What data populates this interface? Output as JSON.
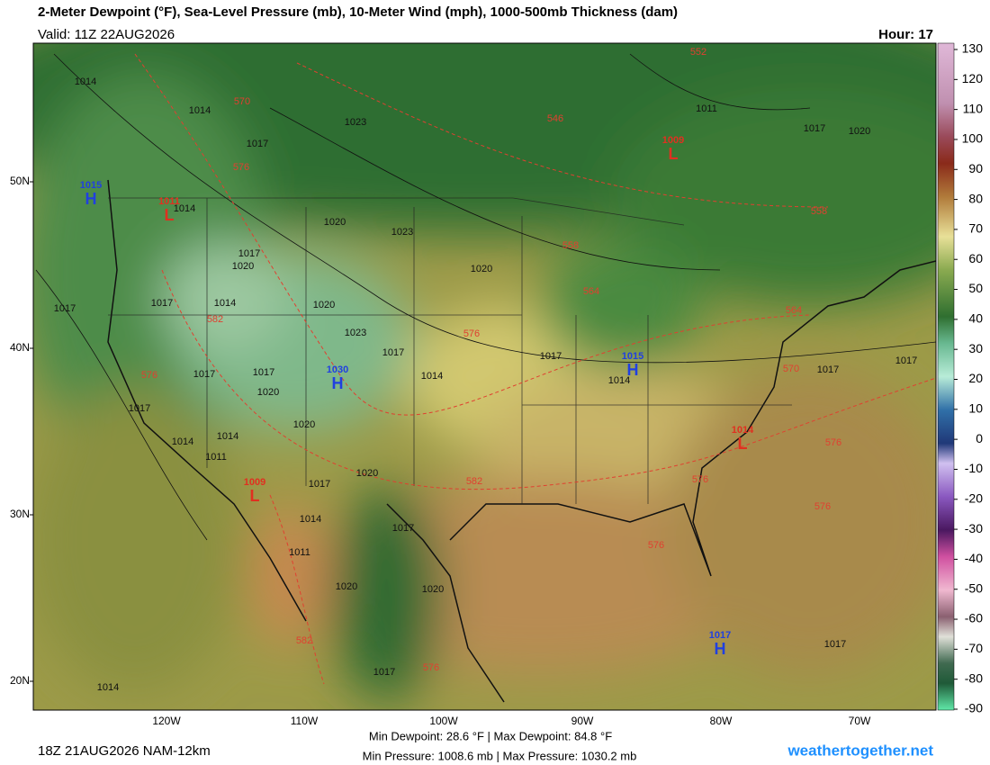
{
  "header": {
    "title": "2-Meter Dewpoint (°F), Sea-Level Pressure (mb), 10-Meter Wind (mph), 1000-500mb Thickness (dam)",
    "valid": "Valid: 11Z 22AUG2026",
    "hour": "Hour: 17"
  },
  "colorbar": {
    "ticks": [
      130,
      120,
      110,
      100,
      90,
      80,
      70,
      60,
      50,
      40,
      30,
      20,
      10,
      0,
      -10,
      -20,
      -30,
      -40,
      -50,
      -60,
      -70,
      -80,
      -90
    ]
  },
  "axes": {
    "latitudes": [
      "50N",
      "40N",
      "30N",
      "20N"
    ],
    "longitudes": [
      "120W",
      "110W",
      "100W",
      "90W",
      "80W",
      "70W"
    ]
  },
  "pressure_centers": [
    {
      "type": "H",
      "value": 1015
    },
    {
      "type": "L",
      "value": 1011
    },
    {
      "type": "H",
      "value": 1030
    },
    {
      "type": "H",
      "value": 1015
    },
    {
      "type": "L",
      "value": 1009
    },
    {
      "type": "L",
      "value": 1014
    },
    {
      "type": "L",
      "value": 1009
    },
    {
      "type": "H",
      "value": 1017
    }
  ],
  "isobar_labels": [
    1014,
    1014,
    1017,
    1023,
    1011,
    1017,
    1020,
    1014,
    1020,
    1023,
    1017,
    1020,
    1020,
    1017,
    1017,
    1014,
    1020,
    1023,
    1017,
    1014,
    1017,
    1014,
    1017,
    1017,
    1017,
    1017,
    1020,
    1017,
    1020,
    1014,
    1014,
    1011,
    1020,
    1017,
    1014,
    1017,
    1011,
    1020,
    1020,
    1017,
    1017,
    1014
  ],
  "thickness_labels": [
    552,
    570,
    546,
    576,
    558,
    558,
    564,
    564,
    582,
    576,
    570,
    576,
    576,
    576,
    582,
    576,
    576,
    582,
    576
  ],
  "footer": {
    "run": "18Z 21AUG2026 NAM-12km",
    "dewpoint": "Min Dewpoint: 28.6 °F | Max Dewpoint: 84.8 °F",
    "pressure": "Min Pressure: 1008.6 mb | Max Pressure: 1030.2 mb",
    "site": "weathertogether.net"
  }
}
